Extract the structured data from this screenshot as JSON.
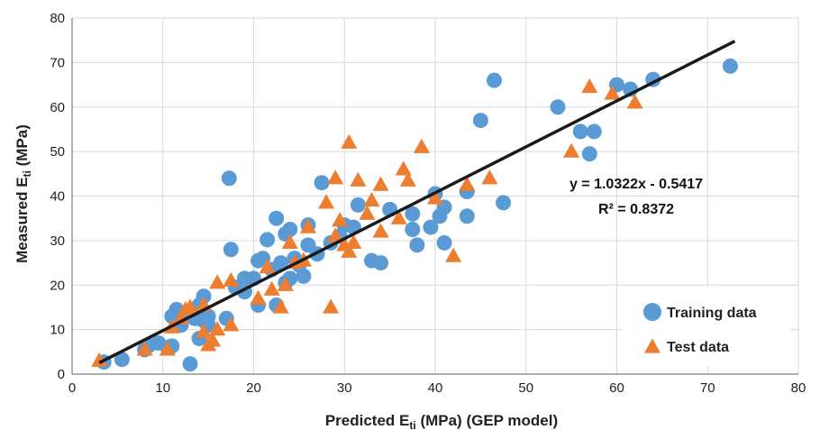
{
  "chart_data": {
    "type": "scatter",
    "xlabel": {
      "main": "Predicted E",
      "sub": "ti",
      "rest": " (MPa) (GEP model)"
    },
    "ylabel": {
      "main": "Measured E",
      "sub": "ti",
      "rest": " (MPa)"
    },
    "xlim": [
      0,
      80
    ],
    "ylim": [
      0,
      80
    ],
    "xticks": [
      0,
      10,
      20,
      30,
      40,
      50,
      60,
      70,
      80
    ],
    "yticks": [
      0,
      10,
      20,
      30,
      40,
      50,
      60,
      70,
      80
    ],
    "grid": true,
    "legend_position": "bottom-right",
    "fit_line": {
      "slope": 1.0322,
      "intercept": -0.5417,
      "x_range": [
        3,
        73
      ],
      "equation": "y = 1.0322x - 0.5417",
      "r2": "R² = 0.8372",
      "color": "#1a1a1a"
    },
    "series": [
      {
        "name": "Training data",
        "marker": "circle",
        "color": "#5b9bd5",
        "points": [
          [
            3.5,
            2.7
          ],
          [
            5.5,
            3.3
          ],
          [
            8,
            5.5
          ],
          [
            8.5,
            6.5
          ],
          [
            9.5,
            7
          ],
          [
            10.5,
            6
          ],
          [
            11,
            6.3
          ],
          [
            11,
            13
          ],
          [
            11.5,
            14.5
          ],
          [
            12,
            11
          ],
          [
            12.5,
            13.5
          ],
          [
            13,
            2.3
          ],
          [
            13.5,
            12.5
          ],
          [
            14,
            8
          ],
          [
            14,
            15.5
          ],
          [
            14.5,
            17.5
          ],
          [
            15,
            13
          ],
          [
            15,
            11
          ],
          [
            14.5,
            12
          ],
          [
            17,
            12.5
          ],
          [
            17.3,
            44
          ],
          [
            17.5,
            28
          ],
          [
            18,
            19.5
          ],
          [
            19,
            18.5
          ],
          [
            19,
            21.5
          ],
          [
            20,
            21.5
          ],
          [
            20.5,
            25.5
          ],
          [
            20.5,
            15.5
          ],
          [
            21,
            26
          ],
          [
            21.5,
            30.2
          ],
          [
            22,
            23.5
          ],
          [
            22.5,
            15.5
          ],
          [
            22.5,
            35
          ],
          [
            23,
            25
          ],
          [
            23.5,
            31.5
          ],
          [
            23.5,
            20.5
          ],
          [
            24,
            32.5
          ],
          [
            24,
            21.5
          ],
          [
            24.5,
            26
          ],
          [
            25,
            24.5
          ],
          [
            25.5,
            22
          ],
          [
            26,
            29
          ],
          [
            26,
            33.5
          ],
          [
            27,
            27
          ],
          [
            27.5,
            43
          ],
          [
            28.5,
            29.5
          ],
          [
            29.5,
            31
          ],
          [
            30,
            33.5
          ],
          [
            31,
            33
          ],
          [
            31.5,
            38
          ],
          [
            33,
            25.5
          ],
          [
            34,
            25
          ],
          [
            35,
            37
          ],
          [
            37.5,
            32.5
          ],
          [
            37.5,
            36
          ],
          [
            38,
            29
          ],
          [
            39.5,
            33
          ],
          [
            40,
            40.5
          ],
          [
            40.5,
            35.5
          ],
          [
            41,
            37.5
          ],
          [
            41,
            29.5
          ],
          [
            43.5,
            41
          ],
          [
            43.5,
            35.5
          ],
          [
            45,
            57
          ],
          [
            46.5,
            66
          ],
          [
            47.5,
            38.5
          ],
          [
            53.5,
            60
          ],
          [
            56,
            54.5
          ],
          [
            57,
            49.5
          ],
          [
            57.5,
            54.5
          ],
          [
            60,
            65
          ],
          [
            61.5,
            64
          ],
          [
            64,
            66.2
          ],
          [
            72.5,
            69.2
          ]
        ]
      },
      {
        "name": "Test data",
        "marker": "triangle",
        "color": "#ed7d31",
        "points": [
          [
            3,
            3
          ],
          [
            8,
            5.5
          ],
          [
            10.5,
            5.5
          ],
          [
            11,
            10.5
          ],
          [
            12,
            12.5
          ],
          [
            12.5,
            14.5
          ],
          [
            13,
            15
          ],
          [
            14.5,
            15.5
          ],
          [
            14.5,
            9.5
          ],
          [
            15,
            6.5
          ],
          [
            15.5,
            7.5
          ],
          [
            16,
            10
          ],
          [
            16,
            20.5
          ],
          [
            17.5,
            11
          ],
          [
            17.5,
            21
          ],
          [
            20.5,
            17
          ],
          [
            21.5,
            24
          ],
          [
            22,
            19
          ],
          [
            23,
            15
          ],
          [
            23.5,
            20
          ],
          [
            24,
            29.5
          ],
          [
            24.5,
            25
          ],
          [
            25.5,
            25.5
          ],
          [
            26,
            33
          ],
          [
            28,
            38.5
          ],
          [
            28.5,
            15
          ],
          [
            29,
            44
          ],
          [
            29,
            31
          ],
          [
            29.5,
            34.5
          ],
          [
            30,
            29
          ],
          [
            30.5,
            27.5
          ],
          [
            30.5,
            52
          ],
          [
            31,
            29.5
          ],
          [
            31.5,
            43.5
          ],
          [
            32.5,
            36
          ],
          [
            33,
            39
          ],
          [
            34,
            42.5
          ],
          [
            34,
            32
          ],
          [
            36,
            35
          ],
          [
            36.5,
            46
          ],
          [
            37,
            43.5
          ],
          [
            38.5,
            51
          ],
          [
            40,
            39.5
          ],
          [
            42,
            26.5
          ],
          [
            43.5,
            42.5
          ],
          [
            46,
            44
          ],
          [
            55,
            50
          ],
          [
            57,
            64.5
          ],
          [
            59.5,
            63
          ],
          [
            62,
            61
          ]
        ]
      }
    ]
  },
  "colors": {
    "grid": "#d9d9d9",
    "axis": "#7f7f7f",
    "training": "#5b9bd5",
    "test": "#ed7d31"
  }
}
